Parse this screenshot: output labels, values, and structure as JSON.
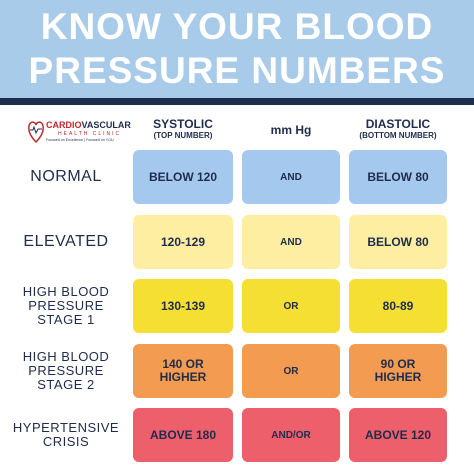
{
  "header": {
    "title_lines": [
      "KNOW YOUR BLOOD",
      "PRESSURE NUMBERS"
    ]
  },
  "logo": {
    "name_part1": "CARDIO",
    "name_part2": "VASCULAR",
    "subtitle": "HEALTH CLINIC",
    "tagline": "Focused on Excellence | Focused on YOU"
  },
  "table": {
    "columns": [
      {
        "title": "SYSTOLIC",
        "subtitle": "(TOP NUMBER)"
      },
      {
        "title": "mm Hg"
      },
      {
        "title": "DIASTOLIC",
        "subtitle": "(BOTTOM NUMBER)"
      }
    ],
    "rows": [
      {
        "label": [
          "NORMAL"
        ],
        "cells": [
          "BELOW 120",
          "AND",
          "BELOW 80"
        ]
      },
      {
        "label": [
          "ELEVATED"
        ],
        "cells": [
          "120-129",
          "AND",
          "BELOW 80"
        ]
      },
      {
        "label": [
          "HIGH BLOOD",
          "PRESSURE",
          "STAGE 1"
        ],
        "cells": [
          "130-139",
          "OR",
          "80-89"
        ]
      },
      {
        "label": [
          "HIGH BLOOD",
          "PRESSURE",
          "STAGE 2"
        ],
        "cells": [
          "140 OR HIGHER",
          "OR",
          "90 OR HIGHER"
        ]
      },
      {
        "label": [
          "HYPERTENSIVE",
          "CRISIS"
        ],
        "cells": [
          "ABOVE 180",
          "AND/OR",
          "ABOVE 120"
        ]
      }
    ]
  }
}
